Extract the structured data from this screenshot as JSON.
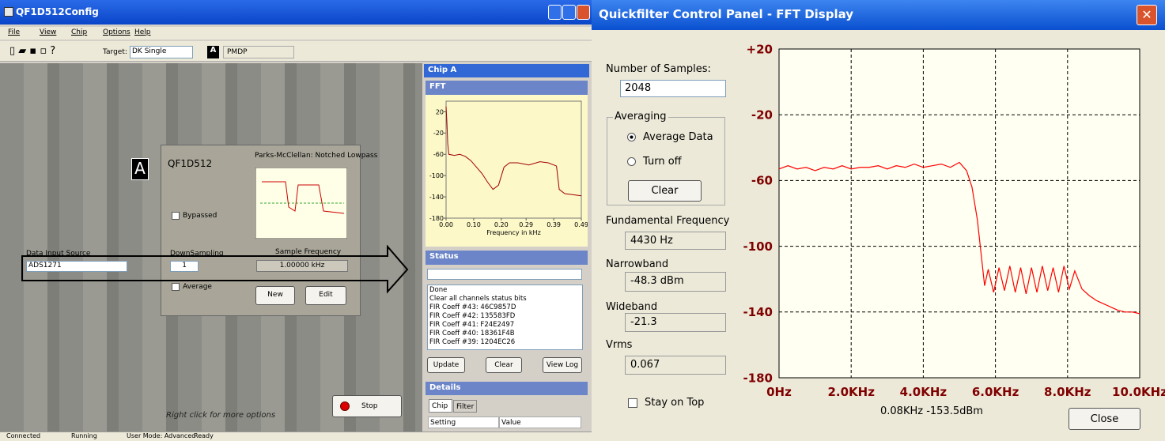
{
  "left_window": {
    "title": "QF1D512Config",
    "menu": [
      "File",
      "View",
      "Chip",
      "Options",
      "Help"
    ],
    "toolbar": {
      "target_label": "Target:",
      "target_value": "DK Single",
      "chip_badge": "A",
      "chip_name": "PMDP"
    },
    "block": {
      "badge": "A",
      "name": "QF1D512",
      "filter": "Parks-McClellan: Notched Lowpass",
      "bypassed": "Bypassed",
      "downsampling_label": "DownSampling",
      "downsampling_value": "1",
      "sample_freq_label": "Sample Frequency",
      "sample_freq_value": "1.00000 kHz",
      "average": "Average",
      "new_button": "New",
      "edit_button": "Edit"
    },
    "data_input_label": "Data Input Source",
    "data_input_value": "ADS1271",
    "stop_button": "Stop",
    "hint": "Right click for more options",
    "status_bar": [
      "Connected",
      "Running",
      "User Mode: Advanced",
      "Ready"
    ]
  },
  "chip_pane": {
    "title": "Chip A",
    "fft_title": "FFT",
    "fft_chart": {
      "type": "line",
      "x_label": "Frequency in kHz",
      "color": "#a00000",
      "x": [
        0,
        0.003,
        0.006,
        0.01,
        0.03,
        0.05,
        0.07,
        0.09,
        0.11,
        0.13,
        0.15,
        0.17,
        0.19,
        0.21,
        0.23,
        0.26,
        0.3,
        0.34,
        0.37,
        0.4,
        0.41,
        0.43,
        0.46,
        0.49
      ],
      "series": [
        {
          "values": [
            30,
            0,
            -40,
            -60,
            -62,
            -60,
            -64,
            -72,
            -84,
            -96,
            -112,
            -126,
            -118,
            -84,
            -76,
            -76,
            -80,
            -74,
            -76,
            -82,
            -126,
            -134,
            -136,
            -138
          ]
        }
      ],
      "xlim": [
        0,
        0.49
      ],
      "ylim": [
        -180,
        40
      ],
      "xticks": [
        {
          "value": 0,
          "label": "0.00"
        },
        {
          "value": 0.1,
          "label": "0.10"
        },
        {
          "value": 0.2,
          "label": "0.20"
        },
        {
          "value": 0.29,
          "label": "0.29"
        },
        {
          "value": 0.39,
          "label": "0.39"
        },
        {
          "value": 0.49,
          "label": "0.49"
        }
      ],
      "yticks": [
        20,
        -20,
        -60,
        -100,
        -140,
        -180
      ]
    },
    "status_title": "Status",
    "log": [
      "Done",
      "Clear all channels status bits",
      "FIR Coeff #43: 46C9857D",
      "FIR Coeff #42: 135583FD",
      "FIR Coeff #41: F24E2497",
      "FIR Coeff #40: 18361F4B",
      "FIR Coeff #39: 1204EC26"
    ],
    "update_button": "Update",
    "clear_button": "Clear",
    "view_log_button": "View Log",
    "details_title": "Details",
    "tabs": [
      "Chip",
      "Filter"
    ],
    "columns": [
      "Setting",
      "Value"
    ]
  },
  "fft_window": {
    "title": "Quickfilter Control Panel - FFT Display",
    "samples_label": "Number of Samples:",
    "samples_value": "2048",
    "averaging_label": "Averaging",
    "average_data": "Average Data",
    "turn_off": "Turn off",
    "clear_button": "Clear",
    "fundamental_label": "Fundamental Frequency",
    "fundamental_value": "4430 Hz",
    "narrowband_label": "Narrowband",
    "narrowband_value": "-48.3 dBm",
    "wideband_label": "Wideband",
    "wideband_value": "-21.3",
    "vrms_label": "Vrms",
    "vrms_value": "0.067",
    "stay_on_top": "Stay on Top",
    "readout": "0.08KHz -153.5dBm",
    "close_button": "Close",
    "chart": {
      "type": "line",
      "color": "#ff0000",
      "grid": true,
      "x": [
        0,
        0.25,
        0.5,
        0.75,
        1,
        1.25,
        1.5,
        1.75,
        2,
        2.25,
        2.5,
        2.75,
        3,
        3.25,
        3.5,
        3.75,
        4,
        4.25,
        4.5,
        4.75,
        5,
        5.2,
        5.35,
        5.5,
        5.6,
        5.7,
        5.8,
        5.95,
        6.1,
        6.25,
        6.4,
        6.55,
        6.7,
        6.85,
        7,
        7.15,
        7.3,
        7.45,
        7.6,
        7.75,
        7.9,
        8.05,
        8.2,
        8.4,
        8.6,
        8.8,
        9,
        9.2,
        9.4,
        9.6,
        9.8,
        10
      ],
      "series": [
        {
          "values": [
            -53,
            -51,
            -53,
            -52,
            -54,
            -52,
            -53,
            -51,
            -53,
            -52,
            -52,
            -51,
            -53,
            -51,
            -52,
            -50,
            -52,
            -51,
            -50,
            -52,
            -49,
            -54,
            -64,
            -84,
            -104,
            -124,
            -114,
            -128,
            -113,
            -127,
            -112,
            -128,
            -113,
            -129,
            -113,
            -128,
            -112,
            -127,
            -113,
            -128,
            -112,
            -126,
            -115,
            -126,
            -130,
            -133,
            -135,
            -137,
            -139,
            -140,
            -140,
            -141
          ]
        }
      ],
      "xlim": [
        0,
        10
      ],
      "ylim": [
        -180,
        20
      ],
      "xticks": [
        {
          "value": 0,
          "label": "0Hz"
        },
        {
          "value": 2,
          "label": "2.0KHz"
        },
        {
          "value": 4,
          "label": "4.0KHz"
        },
        {
          "value": 6,
          "label": "6.0KHz"
        },
        {
          "value": 8,
          "label": "8.0KHz"
        },
        {
          "value": 10,
          "label": "10.0KHz"
        }
      ],
      "yticks": [
        {
          "value": 20,
          "label": "+20"
        },
        -20,
        -60,
        -100,
        -140,
        -180
      ]
    }
  }
}
